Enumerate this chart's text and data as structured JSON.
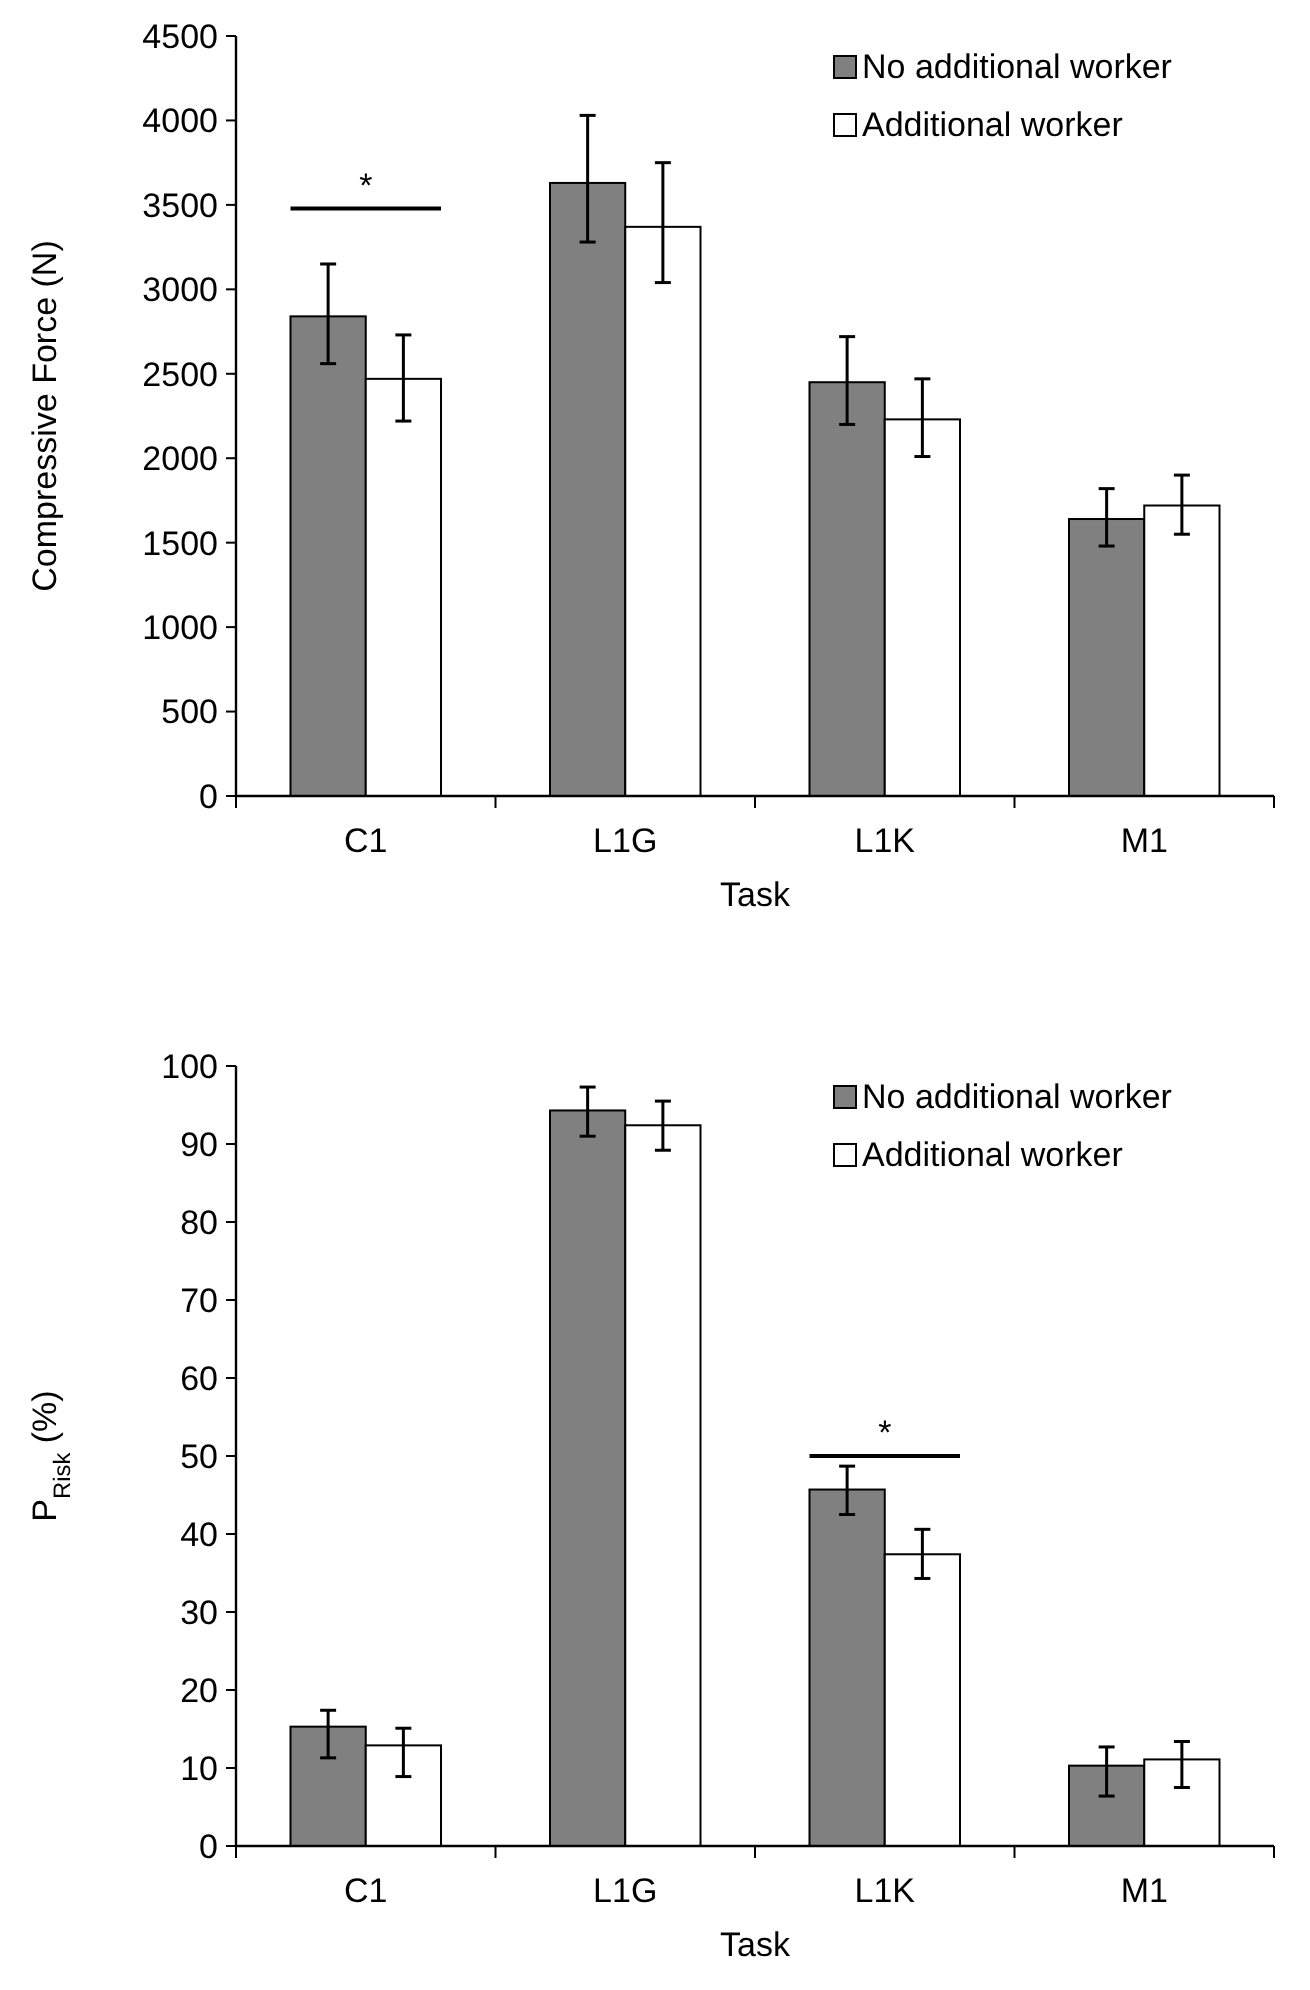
{
  "chart_data": [
    {
      "type": "bar",
      "xlabel": "Task",
      "ylabel": "Compressive Force (N)",
      "categories": [
        "C1",
        "L1G",
        "L1K",
        "M1"
      ],
      "series": [
        {
          "name": "No additional worker",
          "color": "#808080",
          "values": [
            2840,
            3630,
            2450,
            1640
          ],
          "errors": [
            [
              2560,
              3150
            ],
            [
              3280,
              4030
            ],
            [
              2200,
              2720
            ],
            [
              1480,
              1820
            ]
          ]
        },
        {
          "name": "Additional worker",
          "color": "#ffffff",
          "values": [
            2470,
            3370,
            2230,
            1720
          ],
          "errors": [
            [
              2220,
              2730
            ],
            [
              3040,
              3750
            ],
            [
              2010,
              2470
            ],
            [
              1550,
              1900
            ]
          ]
        }
      ],
      "ylim": [
        0,
        4500
      ],
      "yticks": [
        0,
        500,
        1000,
        1500,
        2000,
        2500,
        3000,
        3500,
        4000,
        4500
      ],
      "grid": false,
      "legend": "top right",
      "annotations": [
        "*"
      ]
    },
    {
      "type": "bar",
      "xlabel": "Task",
      "ylabel": "P$_{Risk}$ (%)",
      "categories": [
        "C1",
        "L1G",
        "L1K",
        "M1"
      ],
      "series": [
        {
          "name": "No additional worker",
          "color": "#808080",
          "values": [
            15.3,
            94.3,
            45.7,
            10.3
          ],
          "errors": [
            [
              11.3,
              17.4
            ],
            [
              91.0,
              97.3
            ],
            [
              42.5,
              48.7
            ],
            [
              6.4,
              12.7
            ]
          ]
        },
        {
          "name": "Additional worker",
          "color": "#ffffff",
          "values": [
            12.9,
            92.4,
            37.4,
            11.1
          ],
          "errors": [
            [
              8.9,
              15.1
            ],
            [
              89.2,
              95.5
            ],
            [
              34.3,
              40.6
            ],
            [
              7.5,
              13.4
            ]
          ]
        }
      ],
      "ylim": [
        0,
        100
      ],
      "yticks": [
        0,
        10,
        20,
        30,
        40,
        50,
        60,
        70,
        80,
        90,
        100
      ],
      "grid": false,
      "legend": "top right",
      "annotations": [
        "*"
      ]
    }
  ]
}
